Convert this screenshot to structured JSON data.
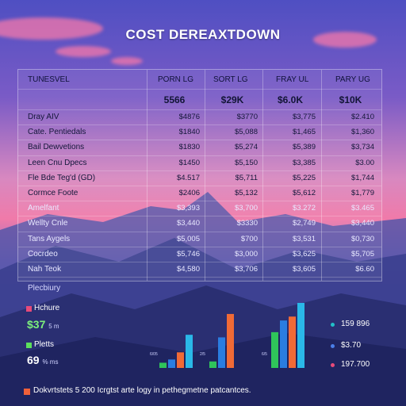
{
  "title": "COST DEREAXTDOWN",
  "table": {
    "columns": [
      "TUNESVEL",
      "PORN LG",
      "SORT LG",
      "FRAY UL",
      "PARY UG"
    ],
    "summary": [
      "5566",
      "$29K",
      "$6.0K",
      "$10K"
    ],
    "rows": [
      {
        "label": "Dray AIV",
        "values": [
          "$4876",
          "$3770",
          "$3,775",
          "$2.410"
        ]
      },
      {
        "label": "Cate. Pentiedals",
        "values": [
          "$1840",
          "$5,088",
          "$1,465",
          "$1,360"
        ]
      },
      {
        "label": "Bail Dewvetions",
        "values": [
          "$1830",
          "$5,274",
          "$5,389",
          "$3,734"
        ]
      },
      {
        "label": "Leen Cnu Dpecs",
        "values": [
          "$1450",
          "$5,150",
          "$3,385",
          "$3.00"
        ]
      },
      {
        "label": "Fle Bde Teg'd (GD)",
        "values": [
          "$4.517",
          "$5,711",
          "$5,225",
          "$1,744"
        ]
      },
      {
        "label": "Cormce Foote",
        "values": [
          "$2406",
          "$5,132",
          "$5,612",
          "$1,779"
        ]
      },
      {
        "label": "Amelfant",
        "values": [
          "$3,393",
          "$3,700",
          "$3.272",
          "$3.465"
        ]
      },
      {
        "label": "Wellty Cnle",
        "values": [
          "$3,440",
          "$3330",
          "$2,749",
          "$3,440"
        ]
      },
      {
        "label": "Tans Aygels",
        "values": [
          "$5,005",
          "$700",
          "$3,531",
          "$0,730"
        ]
      },
      {
        "label": "Cocrdeo",
        "values": [
          "$5,746",
          "$3,000",
          "$3,625",
          "$5,705"
        ]
      },
      {
        "label": "Nah Teok",
        "values": [
          "$4,580",
          "$3,706",
          "$3,605",
          "$6.60"
        ]
      }
    ]
  },
  "summary_section": {
    "label": "Plecbiury",
    "items": [
      {
        "name": "Hchure",
        "value": "$37",
        "unit": "5 m",
        "color": "#e84a7a"
      },
      {
        "name": "Pletts",
        "value": "69",
        "unit": "% ms",
        "color": "#5ce05c"
      }
    ]
  },
  "chart_data": {
    "type": "bar",
    "title": "",
    "xlabel": "",
    "ylabel": "",
    "groups": [
      {
        "label": "6/05",
        "values": [
          0.08,
          0.13,
          0.24,
          0.51
        ]
      },
      {
        "label": "2/5",
        "values": [
          0.1,
          0.47,
          0.83,
          0.0
        ]
      },
      {
        "label": "6/5",
        "values": [
          0.55,
          0.73,
          0.79,
          1.0
        ]
      }
    ],
    "colors": [
      "#2fc55a",
      "#2a7de0",
      "#f06a36",
      "#2ab8e8"
    ],
    "legend": [
      {
        "label": "159 896",
        "color": "#22c0c8"
      },
      {
        "label": "$3.70",
        "color": "#4a7fe8"
      },
      {
        "label": "197.700",
        "color": "#e84a7a"
      }
    ]
  },
  "footnote": "Dokvrtstets 5 200 Icrgtst arte logy in pethegmetne patcantces."
}
